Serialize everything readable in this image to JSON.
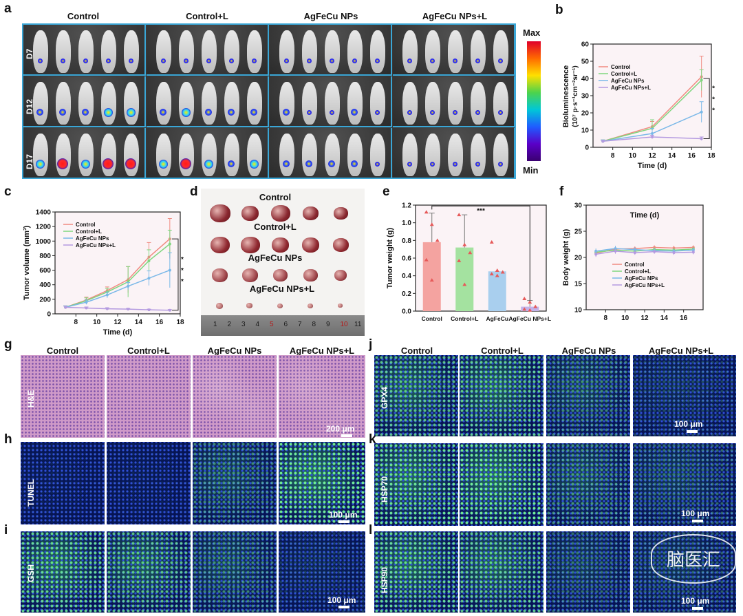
{
  "panel_labels": [
    "a",
    "b",
    "c",
    "d",
    "e",
    "f",
    "g",
    "h",
    "i",
    "j",
    "k",
    "l"
  ],
  "panel_a": {
    "groups": [
      "Control",
      "Control+L",
      "AgFeCu NPs",
      "AgFeCu NPs+L"
    ],
    "days": [
      "D7",
      "D12",
      "D17"
    ],
    "scale_max": "Max",
    "scale_min": "Min"
  },
  "panel_d": {
    "labels": [
      "Control",
      "Control+L",
      "AgFeCu NPs",
      "AgFeCu NPs+L"
    ],
    "ruler_numbers": [
      "1",
      "2",
      "3",
      "4",
      "5",
      "6",
      "7",
      "8",
      "9",
      "10",
      "11"
    ]
  },
  "panel_ghi": {
    "groups": [
      "Control",
      "Control+L",
      "AgFeCu NPs",
      "AgFeCu NPs+L"
    ],
    "rows": [
      "H&E",
      "TUNEL",
      "GSH"
    ],
    "scalebars": [
      "200 μm",
      "100 μm",
      "100 μm"
    ]
  },
  "panel_jkl": {
    "groups": [
      "Control",
      "Control+L",
      "AgFeCu NPs",
      "AgFeCu NPs+L"
    ],
    "rows": [
      "GPX4",
      "HSP70",
      "HSP90"
    ],
    "scalebars": [
      "100 μm",
      "100 μm",
      "100 μm"
    ],
    "watermark": "脑医汇"
  },
  "chart_data": [
    {
      "panel": "b",
      "type": "line",
      "xlabel": "Time (d)",
      "ylabel": "Bioluminescence",
      "ylabel_unit": "(10⁷ p·s⁻¹cm⁻²sr⁻¹)",
      "xlim": [
        6,
        18
      ],
      "ylim": [
        0,
        60
      ],
      "xticks": [
        8,
        10,
        12,
        14,
        16,
        18
      ],
      "yticks": [
        0,
        10,
        20,
        30,
        40,
        50,
        60
      ],
      "x": [
        7,
        12,
        17
      ],
      "series": [
        {
          "name": "Control",
          "color": "#f08a80",
          "values": [
            3.5,
            12,
            41
          ],
          "err": [
            0.8,
            3,
            12
          ]
        },
        {
          "name": "Control+L",
          "color": "#7fd67f",
          "values": [
            3.5,
            11,
            39
          ],
          "err": [
            0.8,
            5,
            6
          ]
        },
        {
          "name": "AgFeCu NPs",
          "color": "#7ab8e8",
          "values": [
            3.5,
            8,
            20.5
          ],
          "err": [
            0.8,
            3,
            6
          ]
        },
        {
          "name": "AgFeCu NPs+L",
          "color": "#b49ae0",
          "values": [
            3.5,
            6,
            5
          ],
          "err": [
            0.5,
            1,
            1
          ]
        }
      ],
      "significance": "* * *",
      "legend": "top-left"
    },
    {
      "panel": "c",
      "type": "line",
      "xlabel": "Time (d)",
      "ylabel": "Tumor volume (mm³)",
      "xlim": [
        6,
        18
      ],
      "ylim": [
        0,
        1400
      ],
      "xticks": [
        8,
        10,
        12,
        14,
        16,
        18
      ],
      "yticks": [
        0,
        200,
        400,
        600,
        800,
        1000,
        1200,
        1400
      ],
      "x": [
        7,
        9,
        11,
        13,
        15,
        17
      ],
      "series": [
        {
          "name": "Control",
          "color": "#f08a80",
          "values": [
            90,
            190,
            320,
            470,
            780,
            1030
          ],
          "err": [
            20,
            40,
            50,
            180,
            200,
            280
          ]
        },
        {
          "name": "Control+L",
          "color": "#7fd67f",
          "values": [
            90,
            180,
            300,
            440,
            730,
            960
          ],
          "err": [
            20,
            40,
            50,
            210,
            150,
            190
          ]
        },
        {
          "name": "AgFeCu NPs",
          "color": "#7ab8e8",
          "values": [
            90,
            160,
            260,
            380,
            490,
            600
          ],
          "err": [
            20,
            30,
            40,
            50,
            100,
            240
          ]
        },
        {
          "name": "AgFeCu NPs+L",
          "color": "#b49ae0",
          "values": [
            90,
            80,
            70,
            65,
            55,
            50
          ],
          "err": [
            15,
            15,
            15,
            10,
            10,
            10
          ]
        }
      ],
      "significance": "* * *",
      "legend": "top-left"
    },
    {
      "panel": "e",
      "type": "bar",
      "ylabel": "Tumor weight (g)",
      "categories": [
        "Control",
        "Control+L",
        "AgFeCu",
        "AgFeCu NPs+L"
      ],
      "ylim": [
        0,
        1.2
      ],
      "yticks": [
        0.0,
        0.2,
        0.4,
        0.6,
        0.8,
        1.0,
        1.2
      ],
      "values": [
        0.78,
        0.72,
        0.45,
        0.05
      ],
      "err": [
        0.33,
        0.37,
        0.0,
        0.07
      ],
      "colors": [
        "#f4a3a0",
        "#a4e2a0",
        "#a9cfee",
        "#c3b2ea"
      ],
      "points": [
        [
          1.12,
          0.98,
          0.8,
          0.58,
          0.35
        ],
        [
          1.09,
          0.75,
          0.66,
          0.57,
          0.3
        ],
        [
          0.78,
          0.46,
          0.44,
          0.42,
          0.4
        ],
        [
          0.14,
          0.1,
          0.05,
          0.02,
          0.01
        ]
      ],
      "significance": "***"
    },
    {
      "panel": "f",
      "type": "line",
      "xlabel": "Time (d)",
      "ylabel": "Body weight (g)",
      "xlim": [
        6,
        18
      ],
      "ylim": [
        10,
        30
      ],
      "xticks": [
        8,
        10,
        12,
        14,
        16
      ],
      "yticks": [
        10,
        15,
        20,
        25,
        30
      ],
      "x": [
        7,
        9,
        11,
        13,
        15,
        17
      ],
      "series": [
        {
          "name": "Control",
          "color": "#f08a80",
          "values": [
            20.8,
            21.6,
            21.7,
            21.9,
            21.8,
            21.9
          ],
          "err": [
            0.5,
            0.5,
            0.4,
            0.4,
            0.4,
            0.4
          ]
        },
        {
          "name": "Control+L",
          "color": "#7fd67f",
          "values": [
            21,
            21.4,
            21.2,
            21.5,
            21.4,
            21.6
          ],
          "err": [
            0.5,
            0.5,
            0.4,
            0.4,
            0.4,
            0.4
          ]
        },
        {
          "name": "AgFeCu NPs",
          "color": "#7ab8e8",
          "values": [
            21.2,
            21.7,
            21.5,
            21.3,
            21.2,
            21.4
          ],
          "err": [
            0.5,
            0.5,
            0.4,
            0.4,
            0.4,
            0.4
          ]
        },
        {
          "name": "AgFeCu NPs+L",
          "color": "#b49ae0",
          "values": [
            20.6,
            21.2,
            20.9,
            21.1,
            20.9,
            21.0
          ],
          "err": [
            0.5,
            0.5,
            0.4,
            0.4,
            0.4,
            0.4
          ]
        }
      ],
      "legend": "center"
    }
  ]
}
